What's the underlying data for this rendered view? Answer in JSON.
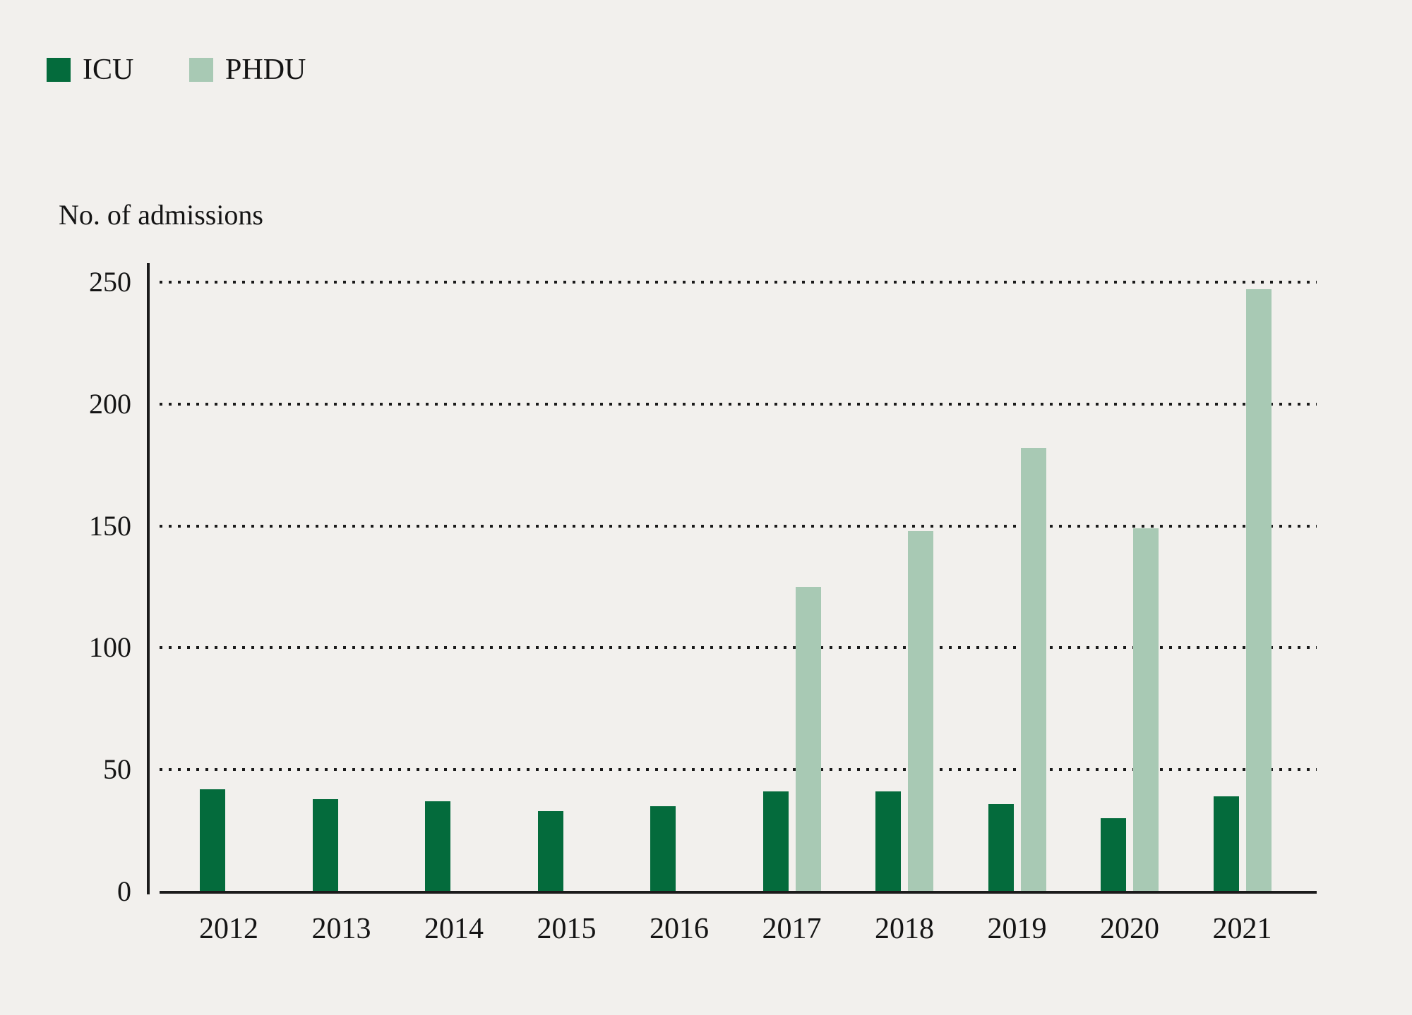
{
  "legend": {
    "items": [
      {
        "label": "ICU",
        "color": "#046B3C"
      },
      {
        "label": "PHDU",
        "color": "#A8C9B4"
      }
    ]
  },
  "chart_data": {
    "type": "bar",
    "title": "",
    "ylabel": "No. of admissions",
    "xlabel": "",
    "categories": [
      "2012",
      "2013",
      "2014",
      "2015",
      "2016",
      "2017",
      "2018",
      "2019",
      "2020",
      "2021"
    ],
    "series": [
      {
        "name": "ICU",
        "color": "#046B3C",
        "values": [
          42,
          38,
          37,
          33,
          35,
          41,
          41,
          36,
          30,
          39
        ]
      },
      {
        "name": "PHDU",
        "color": "#A8C9B4",
        "values": [
          null,
          null,
          null,
          null,
          null,
          125,
          148,
          182,
          149,
          247
        ]
      }
    ],
    "yticks": [
      0,
      50,
      100,
      150,
      200,
      250
    ],
    "ylim": [
      0,
      250
    ],
    "grid": "horizontal-dotted",
    "legend_position": "top-left"
  },
  "colors": {
    "background": "#F2F0ED",
    "axis": "#1b1b1b",
    "text": "#141414",
    "icu": "#046B3C",
    "phdu": "#A8C9B4"
  }
}
